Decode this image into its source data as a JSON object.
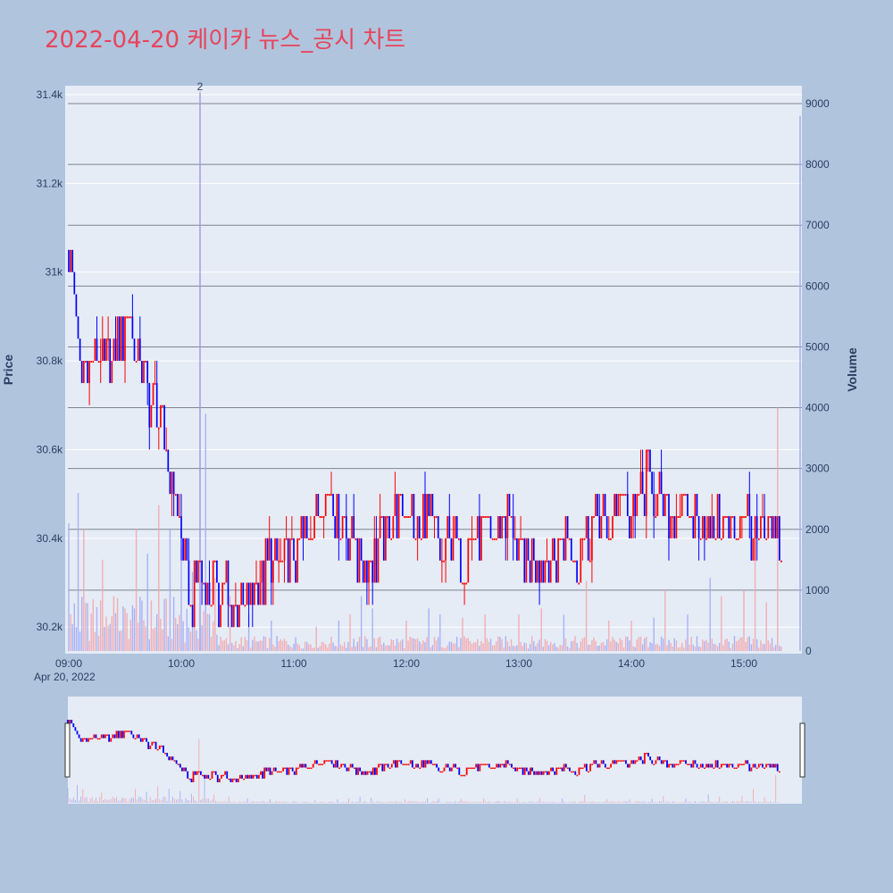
{
  "page": {
    "title": "2022-04-20 케이카 뉴스_공시 차트"
  },
  "colors": {
    "background": "#b0c4de",
    "plot_bg": "#e5ecf6",
    "title": "#e8445a",
    "up": "#ff0000",
    "down": "#0000ff",
    "volume_up": "#f4a3a8",
    "volume_down": "#9fa8f5"
  },
  "chart_data": {
    "type": "candlestick",
    "x_ticks": [
      "09:00",
      "10:00",
      "11:00",
      "12:00",
      "13:00",
      "14:00",
      "15:00"
    ],
    "x_date_label": "Apr 20, 2022",
    "price_axis": {
      "label": "Price",
      "ticks": [
        "30.2k",
        "30.4k",
        "30.6k",
        "30.8k",
        "31k",
        "31.2k",
        "31.4k"
      ],
      "range": [
        30140,
        31420
      ]
    },
    "volume_axis": {
      "label": "Volume",
      "ticks": [
        "0",
        "1000",
        "2000",
        "3000",
        "4000",
        "5000",
        "6000",
        "7000",
        "8000",
        "9000"
      ],
      "range": [
        0,
        9300
      ]
    },
    "annotation": {
      "text": "2",
      "time": "10:10"
    },
    "price_path": [
      [
        "09:00",
        31050
      ],
      [
        "09:03",
        30950
      ],
      [
        "09:06",
        30750
      ],
      [
        "09:09",
        30800
      ],
      [
        "09:12",
        30800
      ],
      [
        "09:18",
        30800
      ],
      [
        "09:24",
        30800
      ],
      [
        "09:28",
        30850
      ],
      [
        "09:32",
        30900
      ],
      [
        "09:36",
        30800
      ],
      [
        "09:40",
        30750
      ],
      [
        "09:45",
        30700
      ],
      [
        "09:50",
        30650
      ],
      [
        "09:53",
        30550
      ],
      [
        "09:56",
        30500
      ],
      [
        "10:00",
        30400
      ],
      [
        "10:03",
        30300
      ],
      [
        "10:06",
        30250
      ],
      [
        "10:09",
        30350
      ],
      [
        "10:12",
        30300
      ],
      [
        "10:15",
        30250
      ],
      [
        "10:18",
        30300
      ],
      [
        "10:20",
        30250
      ],
      [
        "10:23",
        30300
      ],
      [
        "10:26",
        30250
      ],
      [
        "10:30",
        30250
      ],
      [
        "10:36",
        30250
      ],
      [
        "10:42",
        30300
      ],
      [
        "10:48",
        30350
      ],
      [
        "10:54",
        30350
      ],
      [
        "11:00",
        30350
      ],
      [
        "11:06",
        30400
      ],
      [
        "11:12",
        30450
      ],
      [
        "11:18",
        30500
      ],
      [
        "11:24",
        30450
      ],
      [
        "11:30",
        30400
      ],
      [
        "11:36",
        30350
      ],
      [
        "11:42",
        30350
      ],
      [
        "11:48",
        30400
      ],
      [
        "11:54",
        30450
      ],
      [
        "12:00",
        30450
      ],
      [
        "12:06",
        30400
      ],
      [
        "12:12",
        30450
      ],
      [
        "12:18",
        30350
      ],
      [
        "12:24",
        30400
      ],
      [
        "12:30",
        30350
      ],
      [
        "12:36",
        30400
      ],
      [
        "12:42",
        30400
      ],
      [
        "12:48",
        30400
      ],
      [
        "12:54",
        30450
      ],
      [
        "13:00",
        30350
      ],
      [
        "13:06",
        30350
      ],
      [
        "13:12",
        30350
      ],
      [
        "13:18",
        30350
      ],
      [
        "13:24",
        30400
      ],
      [
        "13:30",
        30350
      ],
      [
        "13:36",
        30400
      ],
      [
        "13:42",
        30450
      ],
      [
        "13:48",
        30400
      ],
      [
        "13:54",
        30500
      ],
      [
        "14:00",
        30450
      ],
      [
        "14:06",
        30500
      ],
      [
        "14:10",
        30550
      ],
      [
        "14:13",
        30500
      ],
      [
        "14:18",
        30450
      ],
      [
        "14:24",
        30450
      ],
      [
        "14:30",
        30450
      ],
      [
        "14:36",
        30450
      ],
      [
        "14:42",
        30400
      ],
      [
        "14:48",
        30450
      ],
      [
        "14:54",
        30400
      ],
      [
        "15:00",
        30450
      ],
      [
        "15:06",
        30400
      ],
      [
        "15:12",
        30400
      ],
      [
        "15:18",
        30400
      ],
      [
        "15:20",
        30350
      ]
    ],
    "volume_spikes": [
      [
        "09:00",
        2100
      ],
      [
        "09:05",
        2600
      ],
      [
        "09:08",
        2000
      ],
      [
        "09:18",
        1500
      ],
      [
        "09:24",
        900
      ],
      [
        "09:30",
        700
      ],
      [
        "09:36",
        2000
      ],
      [
        "09:42",
        1600
      ],
      [
        "09:48",
        2400
      ],
      [
        "09:54",
        2000
      ],
      [
        "10:00",
        1700
      ],
      [
        "10:06",
        1300
      ],
      [
        "10:10",
        9200
      ],
      [
        "10:13",
        3900
      ],
      [
        "10:18",
        1200
      ],
      [
        "10:26",
        900
      ],
      [
        "10:36",
        600
      ],
      [
        "10:48",
        500
      ],
      [
        "11:12",
        400
      ],
      [
        "11:24",
        500
      ],
      [
        "11:30",
        600
      ],
      [
        "11:36",
        900
      ],
      [
        "11:42",
        700
      ],
      [
        "12:00",
        500
      ],
      [
        "12:12",
        700
      ],
      [
        "12:18",
        600
      ],
      [
        "12:30",
        550
      ],
      [
        "12:42",
        600
      ],
      [
        "13:00",
        600
      ],
      [
        "13:12",
        700
      ],
      [
        "13:24",
        600
      ],
      [
        "13:36",
        1150
      ],
      [
        "13:48",
        500
      ],
      [
        "14:00",
        500
      ],
      [
        "14:12",
        550
      ],
      [
        "14:18",
        1000
      ],
      [
        "14:30",
        600
      ],
      [
        "14:42",
        1200
      ],
      [
        "14:48",
        900
      ],
      [
        "15:00",
        1000
      ],
      [
        "15:06",
        2000
      ],
      [
        "15:12",
        800
      ],
      [
        "15:18",
        4000
      ],
      [
        "15:30",
        8800
      ]
    ]
  }
}
